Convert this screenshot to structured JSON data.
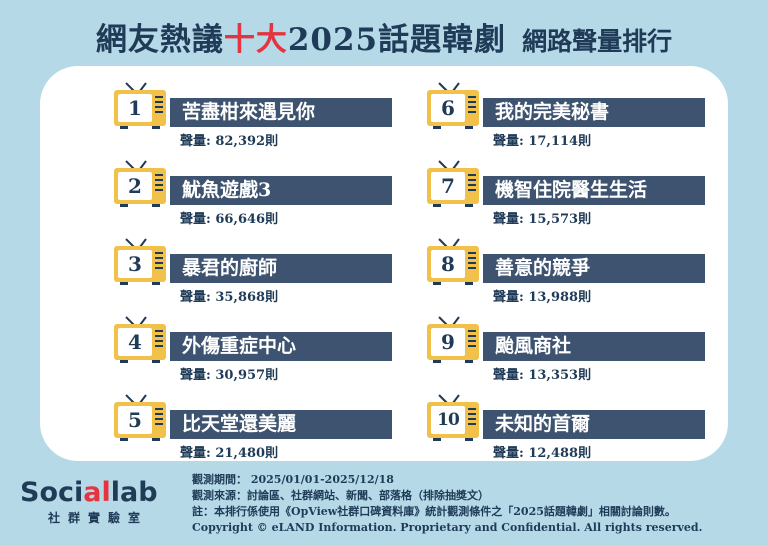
{
  "title": {
    "part1": "網友熱議",
    "highlight": "十大",
    "part2": "2025話題韓劇",
    "subtitle": "網路聲量排行"
  },
  "rankings": [
    {
      "rank": "1",
      "name": "苦盡柑來遇見你",
      "volume": "聲量: 82,392則"
    },
    {
      "rank": "2",
      "name": "魷魚遊戲3",
      "volume": "聲量: 66,646則"
    },
    {
      "rank": "3",
      "name": "暴君的廚師",
      "volume": "聲量: 35,868則"
    },
    {
      "rank": "4",
      "name": "外傷重症中心",
      "volume": "聲量: 30,957則"
    },
    {
      "rank": "5",
      "name": "比天堂還美麗",
      "volume": "聲量: 21,480則"
    },
    {
      "rank": "6",
      "name": "我的完美秘書",
      "volume": "聲量: 17,114則"
    },
    {
      "rank": "7",
      "name": "機智住院醫生生活",
      "volume": "聲量: 15,573則"
    },
    {
      "rank": "8",
      "name": "善意的競爭",
      "volume": "聲量: 13,988則"
    },
    {
      "rank": "9",
      "name": "颱風商社",
      "volume": "聲量: 13,353則"
    },
    {
      "rank": "10",
      "name": "未知的首爾",
      "volume": "聲量: 12,488則"
    }
  ],
  "logo": {
    "text_a": "Soci",
    "text_b": "al",
    "text_c": "lab",
    "subtitle": "社群實驗室"
  },
  "notes": {
    "period": "觀測期間： 2025/01/01-2025/12/18",
    "source": "觀測來源：討論區、社群網站、新聞、部落格（排除抽獎文）",
    "footnote": "註：本排行係使用《OpView社群口碑資料庫》統計觀測條件之「2025話題韓劇」相關討論則數。",
    "copyright": "Copyright © eLAND Information. Proprietary and Confidential. All rights reserved."
  },
  "colors": {
    "background": "#b6d9e8",
    "navy": "#1f3b57",
    "bar": "#3d5370",
    "accent_red": "#e3343f",
    "tv_yellow": "#f2c14a"
  }
}
